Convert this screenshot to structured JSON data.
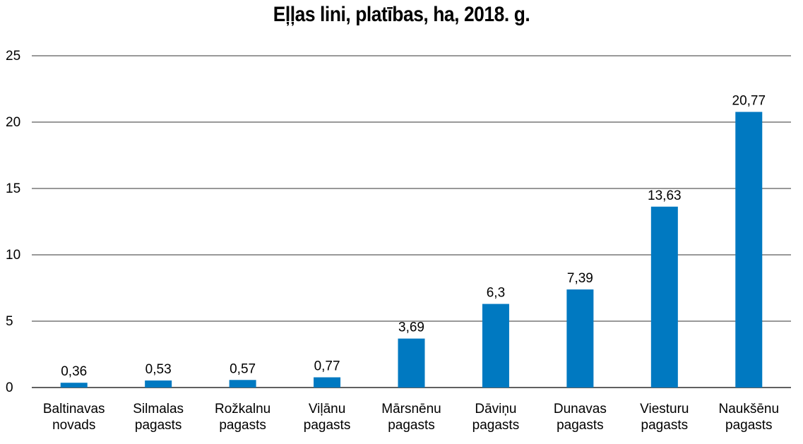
{
  "chart_data": {
    "type": "bar",
    "title": "Eļļas lini, platības, ha, 2018. g.",
    "xlabel": "",
    "ylabel": "",
    "ylim": [
      0,
      25
    ],
    "yticks": [
      0,
      5,
      10,
      15,
      20,
      25
    ],
    "grid": true,
    "bar_color": "#0079c1",
    "categories": [
      [
        "Baltinavas",
        "novads"
      ],
      [
        "Silmalas",
        "pagasts"
      ],
      [
        "Rožkalnu",
        "pagasts"
      ],
      [
        "Viļānu",
        "pagasts"
      ],
      [
        "Mārsnēnu",
        "pagasts"
      ],
      [
        "Dāviņu",
        "pagasts"
      ],
      [
        "Dunavas",
        "pagasts"
      ],
      [
        "Viesturu",
        "pagasts"
      ],
      [
        "Naukšēnu",
        "pagasts"
      ]
    ],
    "values": [
      0.36,
      0.53,
      0.57,
      0.77,
      3.69,
      6.3,
      7.39,
      13.63,
      20.77
    ],
    "data_labels": [
      "0,36",
      "0,53",
      "0,57",
      "0,77",
      "3,69",
      "6,3",
      "7,39",
      "13,63",
      "20,77"
    ]
  }
}
